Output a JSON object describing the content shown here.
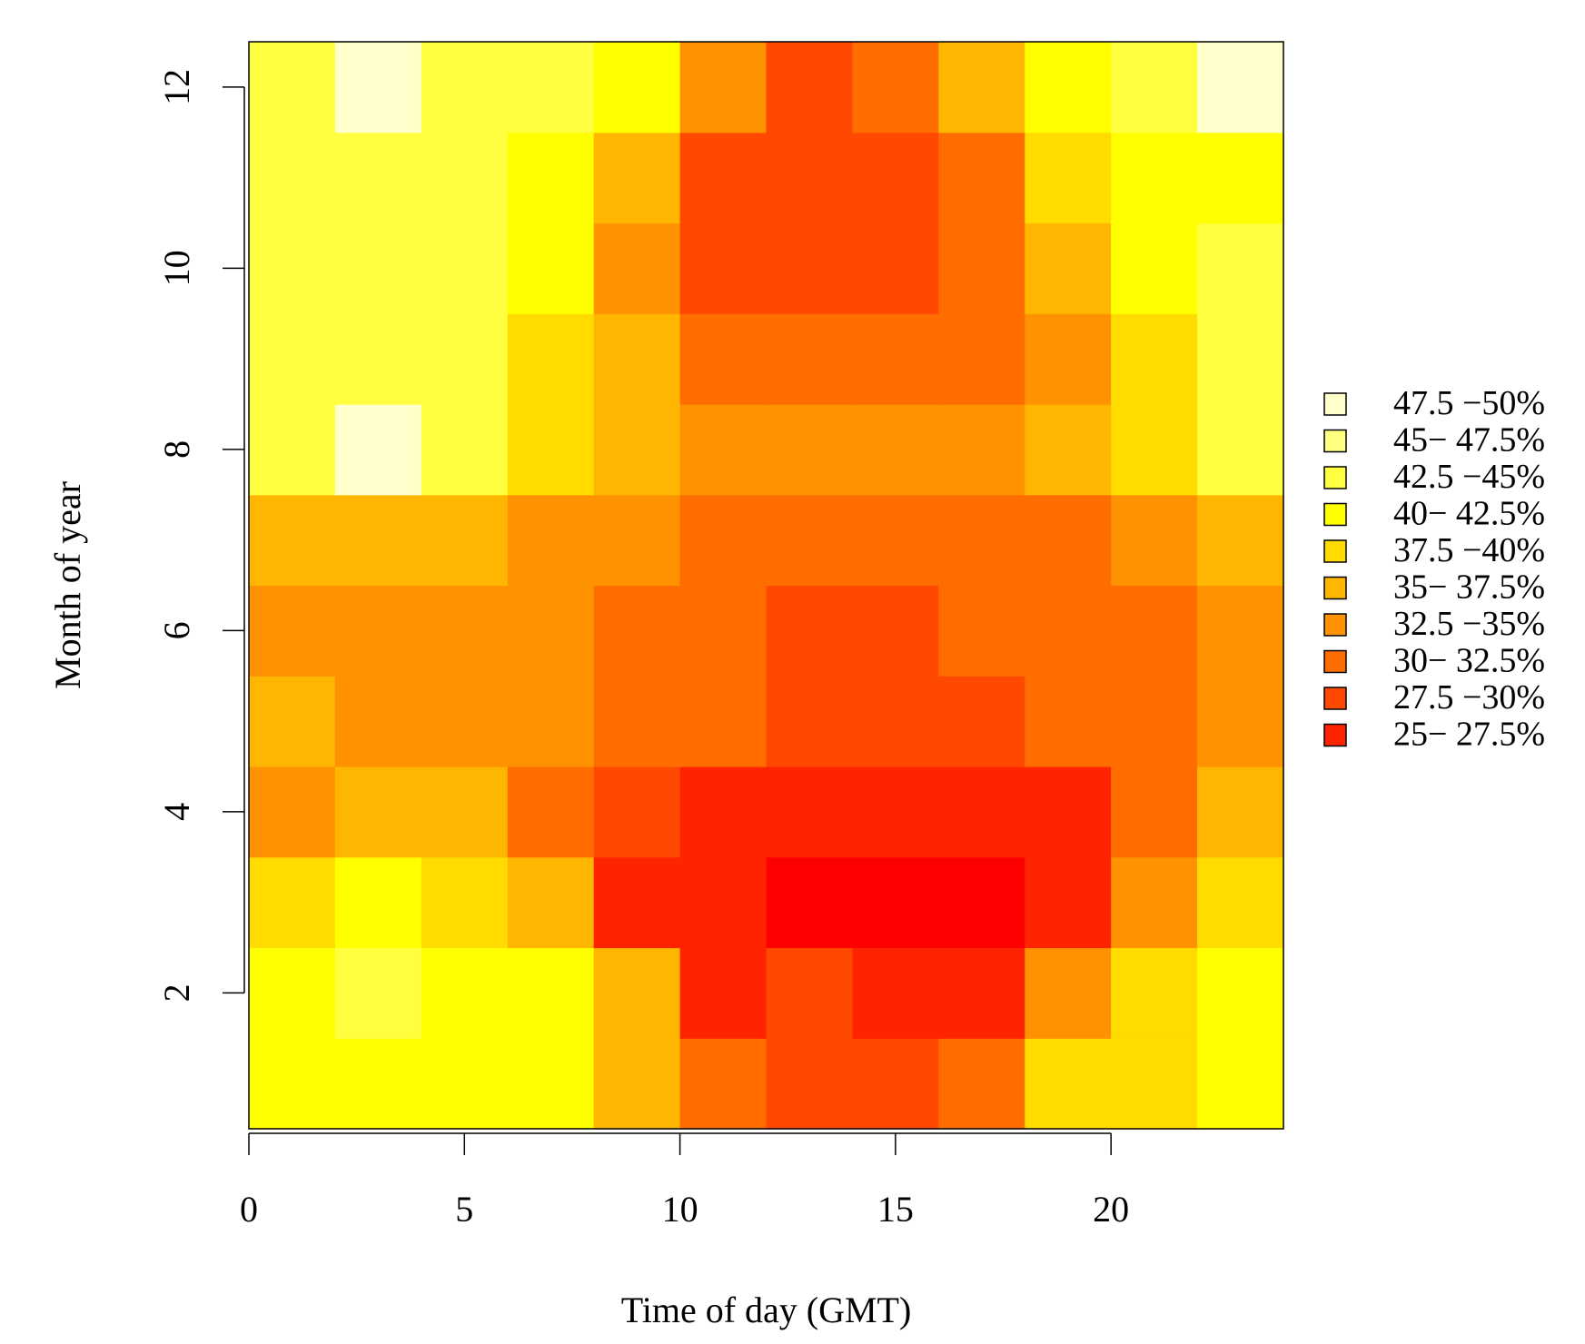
{
  "chart_data": {
    "type": "heatmap",
    "title": "",
    "xlabel": "Time of day (GMT)",
    "ylabel": "Month of year",
    "x_bins": [
      [
        0,
        2
      ],
      [
        2,
        4
      ],
      [
        4,
        6
      ],
      [
        6,
        8
      ],
      [
        8,
        10
      ],
      [
        10,
        12
      ],
      [
        12,
        14
      ],
      [
        14,
        16
      ],
      [
        16,
        18
      ],
      [
        18,
        20
      ],
      [
        20,
        22
      ],
      [
        22,
        24
      ]
    ],
    "y_bins": [
      [
        0.5,
        1.5
      ],
      [
        1.5,
        2.5
      ],
      [
        2.5,
        3.5
      ],
      [
        3.5,
        4.5
      ],
      [
        4.5,
        5.5
      ],
      [
        5.5,
        6.5
      ],
      [
        6.5,
        7.5
      ],
      [
        7.5,
        8.5
      ],
      [
        8.5,
        9.5
      ],
      [
        9.5,
        10.5
      ],
      [
        10.5,
        11.5
      ],
      [
        11.5,
        12.5
      ]
    ],
    "xlim": [
      0,
      24
    ],
    "ylim": [
      0.5,
      12.5
    ],
    "x_ticks": [
      "0",
      "5",
      "10",
      "15",
      "20"
    ],
    "x_tick_values": [
      0,
      5,
      10,
      15,
      20
    ],
    "y_ticks": [
      "2",
      "4",
      "6",
      "8",
      "10",
      "12"
    ],
    "y_tick_values": [
      2,
      4,
      6,
      8,
      10,
      12
    ],
    "value_unit": "%",
    "value_bin_index_note_rows_are_months_1_to_12_columns_are_hour_bins": true,
    "legend_position": "right",
    "legend": [
      {
        "label": "47.5 −50%",
        "range": [
          47.5,
          50
        ],
        "color": "#FFFFCC"
      },
      {
        "label": "45− 47.5%",
        "range": [
          45,
          47.5
        ],
        "color": "#FFFF80"
      },
      {
        "label": "42.5 −45%",
        "range": [
          42.5,
          45
        ],
        "color": "#FFFF3F"
      },
      {
        "label": "40− 42.5%",
        "range": [
          40,
          42.5
        ],
        "color": "#FFFF00"
      },
      {
        "label": "37.5 −40%",
        "range": [
          37.5,
          40
        ],
        "color": "#FFDB00"
      },
      {
        "label": "35− 37.5%",
        "range": [
          35,
          37.5
        ],
        "color": "#FFB600"
      },
      {
        "label": "32.5 −35%",
        "range": [
          32.5,
          35
        ],
        "color": "#FF9200"
      },
      {
        "label": "30− 32.5%",
        "range": [
          30,
          32.5
        ],
        "color": "#FF6D00"
      },
      {
        "label": "27.5 −30%",
        "range": [
          27.5,
          30
        ],
        "color": "#FF4900"
      },
      {
        "label": "25− 27.5%",
        "range": [
          25,
          27.5
        ],
        "color": "#FF2400"
      }
    ],
    "extra_color": {
      "range": [
        22.5,
        25
      ],
      "color": "#FF0000"
    },
    "values": [
      [
        41.25,
        41.25,
        41.25,
        41.25,
        36.25,
        31.25,
        28.75,
        28.75,
        31.25,
        38.75,
        38.75,
        41.25
      ],
      [
        41.25,
        43.75,
        41.25,
        41.25,
        36.25,
        26.25,
        28.75,
        26.25,
        26.25,
        33.75,
        38.75,
        41.25
      ],
      [
        38.75,
        41.25,
        38.75,
        36.25,
        26.25,
        26.25,
        23.75,
        23.75,
        23.75,
        26.25,
        33.75,
        38.75
      ],
      [
        33.75,
        36.25,
        36.25,
        31.25,
        28.75,
        26.25,
        26.25,
        26.25,
        26.25,
        26.25,
        31.25,
        36.25
      ],
      [
        36.25,
        33.75,
        33.75,
        33.75,
        31.25,
        31.25,
        28.75,
        28.75,
        28.75,
        31.25,
        31.25,
        33.75
      ],
      [
        33.75,
        33.75,
        33.75,
        33.75,
        31.25,
        31.25,
        28.75,
        28.75,
        31.25,
        31.25,
        31.25,
        33.75
      ],
      [
        36.25,
        36.25,
        36.25,
        33.75,
        33.75,
        31.25,
        31.25,
        31.25,
        31.25,
        31.25,
        33.75,
        36.25
      ],
      [
        43.75,
        48.75,
        43.75,
        38.75,
        36.25,
        33.75,
        33.75,
        33.75,
        33.75,
        36.25,
        38.75,
        43.75
      ],
      [
        43.75,
        43.75,
        43.75,
        38.75,
        36.25,
        31.25,
        31.25,
        31.25,
        31.25,
        33.75,
        38.75,
        43.75
      ],
      [
        43.75,
        43.75,
        43.75,
        41.25,
        33.75,
        28.75,
        28.75,
        28.75,
        31.25,
        36.25,
        41.25,
        43.75
      ],
      [
        43.75,
        43.75,
        43.75,
        41.25,
        36.25,
        28.75,
        28.75,
        28.75,
        31.25,
        38.75,
        41.25,
        41.25
      ],
      [
        43.75,
        48.75,
        43.75,
        43.75,
        41.25,
        33.75,
        28.75,
        31.25,
        36.25,
        41.25,
        43.75,
        48.75
      ]
    ],
    "grid": false
  }
}
